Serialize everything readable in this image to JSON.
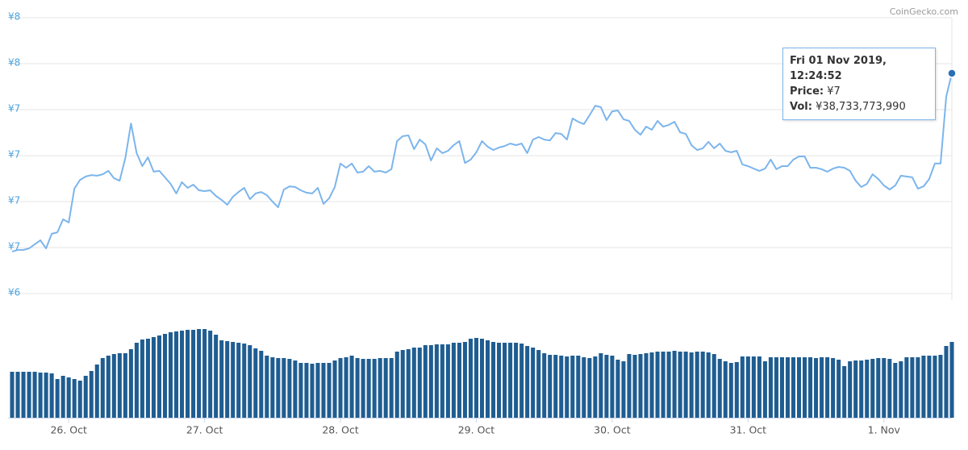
{
  "credit": "CoinGecko.com",
  "tooltip": {
    "date": "Fri 01 Nov 2019, 12:24:52",
    "price_label": "Price:",
    "price": "¥7",
    "vol_label": "Vol:",
    "vol": "¥38,733,773,990"
  },
  "chart_data": [
    {
      "type": "line",
      "color": "#7cb5ec",
      "grid": true,
      "xlim": [
        0,
        166
      ],
      "ylim": [
        6.42,
        7.74
      ],
      "yticks": [
        {
          "value": 6.42,
          "label": "¥6"
        },
        {
          "value": 6.64,
          "label": "¥7"
        },
        {
          "value": 6.86,
          "label": "¥7"
        },
        {
          "value": 7.08,
          "label": "¥7"
        },
        {
          "value": 7.3,
          "label": "¥7"
        },
        {
          "value": 7.52,
          "label": "¥8"
        },
        {
          "value": 7.74,
          "label": "¥8"
        }
      ],
      "values": [
        6.621,
        6.629,
        6.629,
        6.636,
        6.656,
        6.675,
        6.636,
        6.706,
        6.713,
        6.775,
        6.76,
        6.922,
        6.964,
        6.98,
        6.987,
        6.984,
        6.991,
        7.007,
        6.972,
        6.96,
        7.069,
        7.234,
        7.092,
        7.03,
        7.072,
        7.003,
        7.007,
        6.976,
        6.945,
        6.899,
        6.953,
        6.926,
        6.941,
        6.914,
        6.91,
        6.914,
        6.887,
        6.868,
        6.845,
        6.883,
        6.906,
        6.926,
        6.872,
        6.899,
        6.906,
        6.891,
        6.86,
        6.833,
        6.918,
        6.933,
        6.93,
        6.914,
        6.903,
        6.899,
        6.926,
        6.849,
        6.876,
        6.93,
        7.042,
        7.022,
        7.042,
        6.999,
        7.003,
        7.03,
        7.003,
        7.007,
        6.999,
        7.015,
        7.15,
        7.173,
        7.177,
        7.111,
        7.157,
        7.134,
        7.057,
        7.115,
        7.092,
        7.103,
        7.13,
        7.15,
        7.045,
        7.061,
        7.096,
        7.15,
        7.123,
        7.107,
        7.119,
        7.126,
        7.138,
        7.13,
        7.138,
        7.092,
        7.157,
        7.169,
        7.157,
        7.153,
        7.188,
        7.184,
        7.157,
        7.258,
        7.242,
        7.231,
        7.273,
        7.319,
        7.312,
        7.25,
        7.292,
        7.296,
        7.254,
        7.246,
        7.204,
        7.18,
        7.219,
        7.204,
        7.246,
        7.219,
        7.227,
        7.242,
        7.192,
        7.184,
        7.13,
        7.107,
        7.115,
        7.146,
        7.115,
        7.138,
        7.103,
        7.096,
        7.103,
        7.038,
        7.03,
        7.018,
        7.007,
        7.018,
        7.061,
        7.015,
        7.03,
        7.03,
        7.061,
        7.076,
        7.076,
        7.022,
        7.022,
        7.015,
        7.003,
        7.018,
        7.026,
        7.022,
        7.007,
        6.96,
        6.93,
        6.945,
        6.991,
        6.968,
        6.937,
        6.918,
        6.937,
        6.984,
        6.98,
        6.976,
        6.922,
        6.933,
        6.968,
        7.042,
        7.042,
        7.362,
        7.474
      ]
    },
    {
      "type": "bar",
      "color": "#1f5d91",
      "xlim": [
        0,
        166
      ],
      "xticks": [
        {
          "value": 10,
          "label": "26. Oct"
        },
        {
          "value": 34,
          "label": "27. Oct"
        },
        {
          "value": 58,
          "label": "28. Oct"
        },
        {
          "value": 82,
          "label": "29. Oct"
        },
        {
          "value": 106,
          "label": "30. Oct"
        },
        {
          "value": 130,
          "label": "31. Oct"
        },
        {
          "value": 154,
          "label": "1. Nov"
        }
      ],
      "values": [
        23484000000.0,
        23484000000.0,
        23484000000.0,
        23484000000.0,
        23484000000.0,
        23072000000.0,
        23072000000.0,
        22660000000.0,
        19776000000.0,
        21424000000.0,
        20600000000.0,
        19776000000.0,
        18952000000.0,
        21424000000.0,
        23896000000.0,
        27192000000.0,
        30488000000.0,
        31724000000.0,
        32548000000.0,
        32960000000.0,
        32960000000.0,
        35020000000.0,
        38316000000.0,
        39964000000.0,
        40376000000.0,
        41200000000.0,
        42024000000.0,
        42848000000.0,
        43672000000.0,
        44084000000.0,
        44496000000.0,
        44908000000.0,
        44908000000.0,
        45320000000.0,
        45320000000.0,
        44496000000.0,
        42436000000.0,
        39552000000.0,
        39140000000.0,
        38728000000.0,
        38316000000.0,
        37904000000.0,
        37080000000.0,
        35432000000.0,
        34196000000.0,
        31724000000.0,
        30900000000.0,
        30488000000.0,
        30488000000.0,
        30076000000.0,
        29252000000.0,
        28016000000.0,
        28016000000.0,
        27604000000.0,
        28016000000.0,
        28016000000.0,
        28016000000.0,
        29252000000.0,
        30488000000.0,
        30900000000.0,
        31724000000.0,
        30488000000.0,
        30076000000.0,
        30076000000.0,
        30076000000.0,
        30488000000.0,
        30488000000.0,
        30488000000.0,
        33784000000.0,
        34608000000.0,
        35020000000.0,
        35844000000.0,
        35844000000.0,
        37080000000.0,
        37080000000.0,
        37492000000.0,
        37492000000.0,
        37492000000.0,
        38316000000.0,
        38316000000.0,
        38728000000.0,
        40376000000.0,
        40788000000.0,
        40376000000.0,
        39552000000.0,
        38728000000.0,
        38316000000.0,
        38316000000.0,
        38316000000.0,
        38316000000.0,
        37904000000.0,
        36668000000.0,
        35844000000.0,
        34608000000.0,
        32960000000.0,
        32136000000.0,
        32136000000.0,
        31724000000.0,
        31312000000.0,
        31724000000.0,
        31724000000.0,
        30900000000.0,
        30488000000.0,
        31312000000.0,
        32960000000.0,
        32136000000.0,
        31724000000.0,
        29664000000.0,
        28840000000.0,
        32548000000.0,
        32136000000.0,
        32548000000.0,
        32960000000.0,
        33372000000.0,
        33784000000.0,
        33784000000.0,
        33784000000.0,
        34196000000.0,
        33784000000.0,
        33784000000.0,
        33372000000.0,
        33784000000.0,
        33784000000.0,
        33372000000.0,
        32548000000.0,
        30076000000.0,
        28840000000.0,
        28016000000.0,
        28428000000.0,
        31312000000.0,
        31312000000.0,
        31312000000.0,
        31312000000.0,
        28840000000.0,
        30900000000.0,
        30900000000.0,
        30900000000.0,
        30900000000.0,
        30900000000.0,
        30900000000.0,
        30900000000.0,
        30900000000.0,
        30488000000.0,
        30900000000.0,
        30900000000.0,
        30488000000.0,
        29664000000.0,
        26368000000.0,
        28840000000.0,
        29252000000.0,
        29252000000.0,
        29664000000.0,
        30076000000.0,
        30488000000.0,
        30488000000.0,
        30076000000.0,
        28016000000.0,
        28840000000.0,
        30900000000.0,
        30900000000.0,
        30900000000.0,
        31724000000.0,
        31724000000.0,
        31724000000.0,
        32136000000.0,
        36668000000.0,
        38733773990
      ]
    }
  ]
}
